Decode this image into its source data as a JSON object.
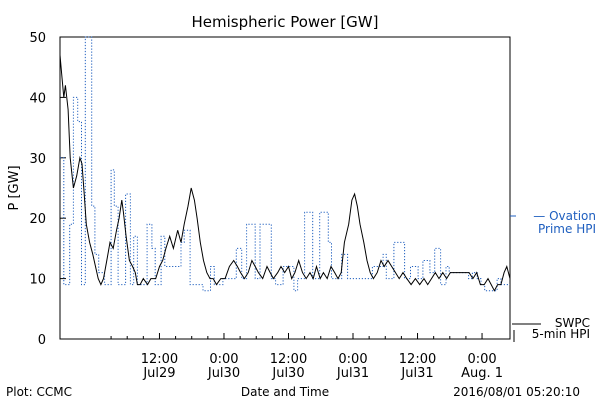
{
  "footer": {
    "left": "Plot: CCMC",
    "right": "2016/08/01 05:20:10"
  },
  "chart_data": {
    "type": "line",
    "title": "Hemispheric Power [GW]",
    "xlabel": "Date and Time",
    "ylabel": "P [GW]",
    "ylim": [
      0,
      50
    ],
    "yticks": [
      0,
      10,
      20,
      30,
      40,
      50
    ],
    "x_unit": "hours since Jul 29 00:00",
    "xlim": [
      -6.5,
      77.2
    ],
    "x_ticks": [
      {
        "x": 12,
        "time": "12:00",
        "date": "Jul29"
      },
      {
        "x": 24,
        "time": "0:00",
        "date": "Jul30"
      },
      {
        "x": 36,
        "time": "12:00",
        "date": "Jul30"
      },
      {
        "x": 48,
        "time": "0:00",
        "date": "Jul31"
      },
      {
        "x": 60,
        "time": "12:00",
        "date": "Jul31"
      },
      {
        "x": 72,
        "time": "0:00",
        "date": "Aug. 1"
      }
    ],
    "grid": false,
    "series": [
      {
        "name": "Ovation Prime HPI",
        "label_lines": [
          "— Ovation",
          "Prime HPI"
        ],
        "color": "#1f5fbf",
        "style": "dotted",
        "step": true,
        "points": [
          [
            -6.5,
            30
          ],
          [
            -5.8,
            9
          ],
          [
            -4.7,
            19
          ],
          [
            -4.0,
            40
          ],
          [
            -3.2,
            36
          ],
          [
            -2.5,
            9
          ],
          [
            -1.8,
            50
          ],
          [
            -0.6,
            22
          ],
          [
            0.0,
            14
          ],
          [
            0.7,
            11
          ],
          [
            1.8,
            9
          ],
          [
            3.0,
            28
          ],
          [
            3.6,
            22
          ],
          [
            4.3,
            9
          ],
          [
            5.7,
            24
          ],
          [
            6.6,
            9
          ],
          [
            7.2,
            17
          ],
          [
            7.9,
            9
          ],
          [
            9.7,
            19
          ],
          [
            10.6,
            15
          ],
          [
            11.2,
            9
          ],
          [
            12.3,
            17
          ],
          [
            13.0,
            12
          ],
          [
            16.0,
            16
          ],
          [
            16.6,
            18
          ],
          [
            17.7,
            9
          ],
          [
            19.4,
            9
          ],
          [
            20.1,
            8
          ],
          [
            21.5,
            12
          ],
          [
            22.2,
            9
          ],
          [
            23.8,
            10
          ],
          [
            25.2,
            10
          ],
          [
            26.3,
            15
          ],
          [
            27.3,
            10
          ],
          [
            28.2,
            19
          ],
          [
            29.8,
            10
          ],
          [
            30.7,
            19
          ],
          [
            32.8,
            10
          ],
          [
            33.6,
            9
          ],
          [
            35.0,
            12
          ],
          [
            37.0,
            8
          ],
          [
            37.7,
            10
          ],
          [
            39.0,
            21
          ],
          [
            40.5,
            10
          ],
          [
            41.8,
            21
          ],
          [
            43.4,
            16
          ],
          [
            44.0,
            10
          ],
          [
            45.0,
            10
          ],
          [
            45.9,
            14
          ],
          [
            47.0,
            10
          ],
          [
            50.9,
            10
          ],
          [
            51.6,
            12
          ],
          [
            53.6,
            14
          ],
          [
            54.2,
            10
          ],
          [
            55.6,
            16
          ],
          [
            57.6,
            10
          ],
          [
            58.7,
            12
          ],
          [
            60.1,
            10
          ],
          [
            61.0,
            13
          ],
          [
            62.3,
            11
          ],
          [
            63.2,
            15
          ],
          [
            64.3,
            9
          ],
          [
            65.3,
            12
          ],
          [
            65.9,
            11
          ],
          [
            67.0,
            11
          ],
          [
            69.5,
            10
          ],
          [
            70.2,
            11
          ],
          [
            71.1,
            10
          ],
          [
            71.8,
            9
          ],
          [
            72.5,
            8
          ],
          [
            74.8,
            10
          ],
          [
            75.5,
            9
          ],
          [
            77.2,
            9
          ]
        ]
      },
      {
        "name": "SWPC 5-min HPI",
        "label_lines": [
          "SWPC",
          "5-min HPI"
        ],
        "color": "#000000",
        "style": "solid",
        "step": false,
        "points": [
          [
            -6.5,
            47
          ],
          [
            -6.2,
            44
          ],
          [
            -5.8,
            40
          ],
          [
            -5.5,
            42
          ],
          [
            -5.0,
            38
          ],
          [
            -4.6,
            30
          ],
          [
            -4.0,
            25
          ],
          [
            -3.4,
            27
          ],
          [
            -2.8,
            30
          ],
          [
            -2.4,
            29
          ],
          [
            -2.0,
            24
          ],
          [
            -1.6,
            19
          ],
          [
            -1.0,
            16
          ],
          [
            -0.4,
            14
          ],
          [
            0.1,
            12
          ],
          [
            0.6,
            10
          ],
          [
            1.1,
            9
          ],
          [
            1.6,
            10
          ],
          [
            2.2,
            13
          ],
          [
            2.8,
            16
          ],
          [
            3.4,
            15
          ],
          [
            4.0,
            18
          ],
          [
            4.5,
            20
          ],
          [
            5.0,
            23
          ],
          [
            5.3,
            21
          ],
          [
            5.8,
            17
          ],
          [
            6.4,
            13
          ],
          [
            7.0,
            12
          ],
          [
            7.5,
            11
          ],
          [
            7.9,
            9
          ],
          [
            8.4,
            9
          ],
          [
            9.0,
            10
          ],
          [
            9.8,
            9
          ],
          [
            10.4,
            10
          ],
          [
            11.3,
            10
          ],
          [
            12.0,
            12
          ],
          [
            12.6,
            13
          ],
          [
            13.2,
            15
          ],
          [
            13.9,
            17
          ],
          [
            14.6,
            15
          ],
          [
            15.4,
            18
          ],
          [
            16.0,
            16
          ],
          [
            16.6,
            19
          ],
          [
            17.3,
            22
          ],
          [
            17.9,
            25
          ],
          [
            18.5,
            23
          ],
          [
            19.0,
            20
          ],
          [
            19.6,
            16
          ],
          [
            20.2,
            13
          ],
          [
            20.8,
            11
          ],
          [
            21.4,
            10
          ],
          [
            22.0,
            10
          ],
          [
            22.6,
            9
          ],
          [
            23.4,
            10
          ],
          [
            24.2,
            10
          ],
          [
            25.0,
            12
          ],
          [
            25.8,
            13
          ],
          [
            26.5,
            12
          ],
          [
            27.1,
            11
          ],
          [
            27.8,
            10
          ],
          [
            28.5,
            11
          ],
          [
            29.2,
            13
          ],
          [
            29.8,
            12
          ],
          [
            30.4,
            11
          ],
          [
            31.2,
            10
          ],
          [
            32.0,
            12
          ],
          [
            32.6,
            11
          ],
          [
            33.2,
            10
          ],
          [
            34.0,
            11
          ],
          [
            34.6,
            12
          ],
          [
            35.3,
            11
          ],
          [
            36.0,
            12
          ],
          [
            36.6,
            10
          ],
          [
            37.2,
            11
          ],
          [
            37.9,
            13
          ],
          [
            38.6,
            11
          ],
          [
            39.3,
            10
          ],
          [
            40.0,
            11
          ],
          [
            40.6,
            10
          ],
          [
            41.2,
            12
          ],
          [
            41.9,
            10
          ],
          [
            42.5,
            11
          ],
          [
            43.2,
            10
          ],
          [
            43.9,
            12
          ],
          [
            44.6,
            11
          ],
          [
            45.2,
            10
          ],
          [
            45.8,
            11
          ],
          [
            46.4,
            16
          ],
          [
            47.2,
            19
          ],
          [
            47.8,
            23
          ],
          [
            48.3,
            24
          ],
          [
            48.8,
            22
          ],
          [
            49.3,
            19
          ],
          [
            50.0,
            16
          ],
          [
            50.6,
            13
          ],
          [
            51.2,
            11
          ],
          [
            51.8,
            10
          ],
          [
            52.5,
            11
          ],
          [
            53.2,
            13
          ],
          [
            53.8,
            12
          ],
          [
            54.5,
            13
          ],
          [
            55.2,
            12
          ],
          [
            55.9,
            11
          ],
          [
            56.6,
            10
          ],
          [
            57.3,
            11
          ],
          [
            58.0,
            10
          ],
          [
            58.8,
            9
          ],
          [
            59.6,
            10
          ],
          [
            60.4,
            9
          ],
          [
            61.2,
            10
          ],
          [
            61.9,
            9
          ],
          [
            62.6,
            10
          ],
          [
            63.3,
            11
          ],
          [
            64.0,
            10
          ],
          [
            64.7,
            11
          ],
          [
            65.4,
            10
          ],
          [
            66.1,
            11
          ],
          [
            66.8,
            11
          ],
          [
            67.5,
            11
          ],
          [
            68.2,
            11
          ],
          [
            68.9,
            11
          ],
          [
            69.6,
            11
          ],
          [
            70.3,
            10
          ],
          [
            71.0,
            11
          ],
          [
            71.7,
            9
          ],
          [
            72.4,
            9
          ],
          [
            73.1,
            10
          ],
          [
            73.7,
            9
          ],
          [
            74.3,
            8
          ],
          [
            74.9,
            9
          ],
          [
            75.5,
            9
          ],
          [
            76.1,
            11
          ],
          [
            76.6,
            12
          ],
          [
            77.2,
            10
          ]
        ]
      }
    ]
  }
}
